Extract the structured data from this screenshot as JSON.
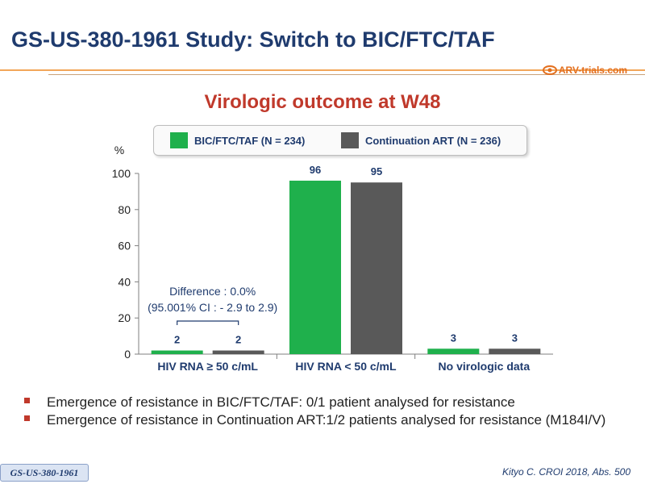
{
  "slide": {
    "title": "GS-US-380-1961 Study: Switch to BIC/FTC/TAF",
    "subtitle": "Virologic outcome at W48",
    "logo_text": "ARV-trials.com",
    "study_tag": "GS-US-380-1961",
    "citation": "Kityo C. CROI 2018, Abs. 500",
    "bullets": [
      "Emergence of resistance in BIC/FTC/TAF:  0/1 patient analysed for resistance",
      "Emergence of resistance in Continuation ART:1/2 patients analysed for resistance (M184I/V)"
    ]
  },
  "colors": {
    "accent_title": "#1f3b6e",
    "subtitle": "#c0392b",
    "series_bic": "#1fb04c",
    "series_cont": "#595959"
  },
  "chart_data": {
    "type": "bar",
    "categories": [
      "HIV RNA ≥ 50 c/mL",
      "HIV RNA < 50 c/mL",
      "No virologic data"
    ],
    "series": [
      {
        "name": "BIC/FTC/TAF (N = 234)",
        "values": [
          2,
          96,
          3
        ],
        "color": "#1fb04c"
      },
      {
        "name": "Continuation ART (N = 236)",
        "values": [
          2,
          95,
          3
        ],
        "color": "#595959"
      }
    ],
    "ylabel": "%",
    "ylim": [
      0,
      100
    ],
    "yticks": [
      0,
      20,
      40,
      60,
      80,
      100
    ],
    "legend_position": "top",
    "annotation": {
      "line1": "Difference : 0.0%",
      "line2": "(95.001% CI : - 2.9 to 2.9)"
    }
  }
}
